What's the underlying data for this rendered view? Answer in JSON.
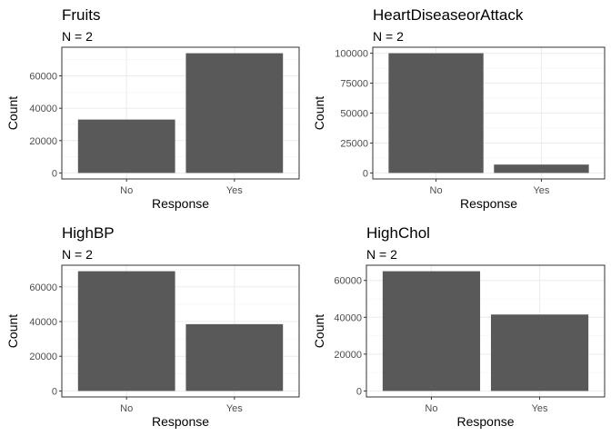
{
  "colors": {
    "bar": "#595959",
    "grid": "#ebebeb",
    "border": "#333333",
    "tick_text": "#4d4d4d"
  },
  "chart_data": [
    {
      "type": "bar",
      "title": "Fruits",
      "subtitle": "N = 2",
      "xlabel": "Response",
      "ylabel": "Count",
      "categories": [
        "No",
        "Yes"
      ],
      "values": [
        33000,
        74000
      ],
      "yticks": [
        0,
        20000,
        40000,
        60000
      ],
      "ylim": [
        -3700,
        77700
      ],
      "grid": true
    },
    {
      "type": "bar",
      "title": "HeartDiseaseorAttack",
      "subtitle": "N = 2",
      "xlabel": "Response",
      "ylabel": "Count",
      "categories": [
        "No",
        "Yes"
      ],
      "values": [
        100000,
        7000
      ],
      "yticks": [
        0,
        25000,
        50000,
        75000,
        100000
      ],
      "ylim": [
        -5000,
        105000
      ],
      "grid": true
    },
    {
      "type": "bar",
      "title": "HighBP",
      "subtitle": "N = 2",
      "xlabel": "Response",
      "ylabel": "Count",
      "categories": [
        "No",
        "Yes"
      ],
      "values": [
        69000,
        38500
      ],
      "yticks": [
        0,
        20000,
        40000,
        60000
      ],
      "ylim": [
        -3450,
        72450
      ],
      "grid": true
    },
    {
      "type": "bar",
      "title": "HighChol",
      "subtitle": "N = 2",
      "xlabel": "Response",
      "ylabel": "Count",
      "categories": [
        "No",
        "Yes"
      ],
      "values": [
        65000,
        41500
      ],
      "yticks": [
        0,
        20000,
        40000,
        60000
      ],
      "ylim": [
        -3250,
        68250
      ],
      "grid": true
    }
  ]
}
